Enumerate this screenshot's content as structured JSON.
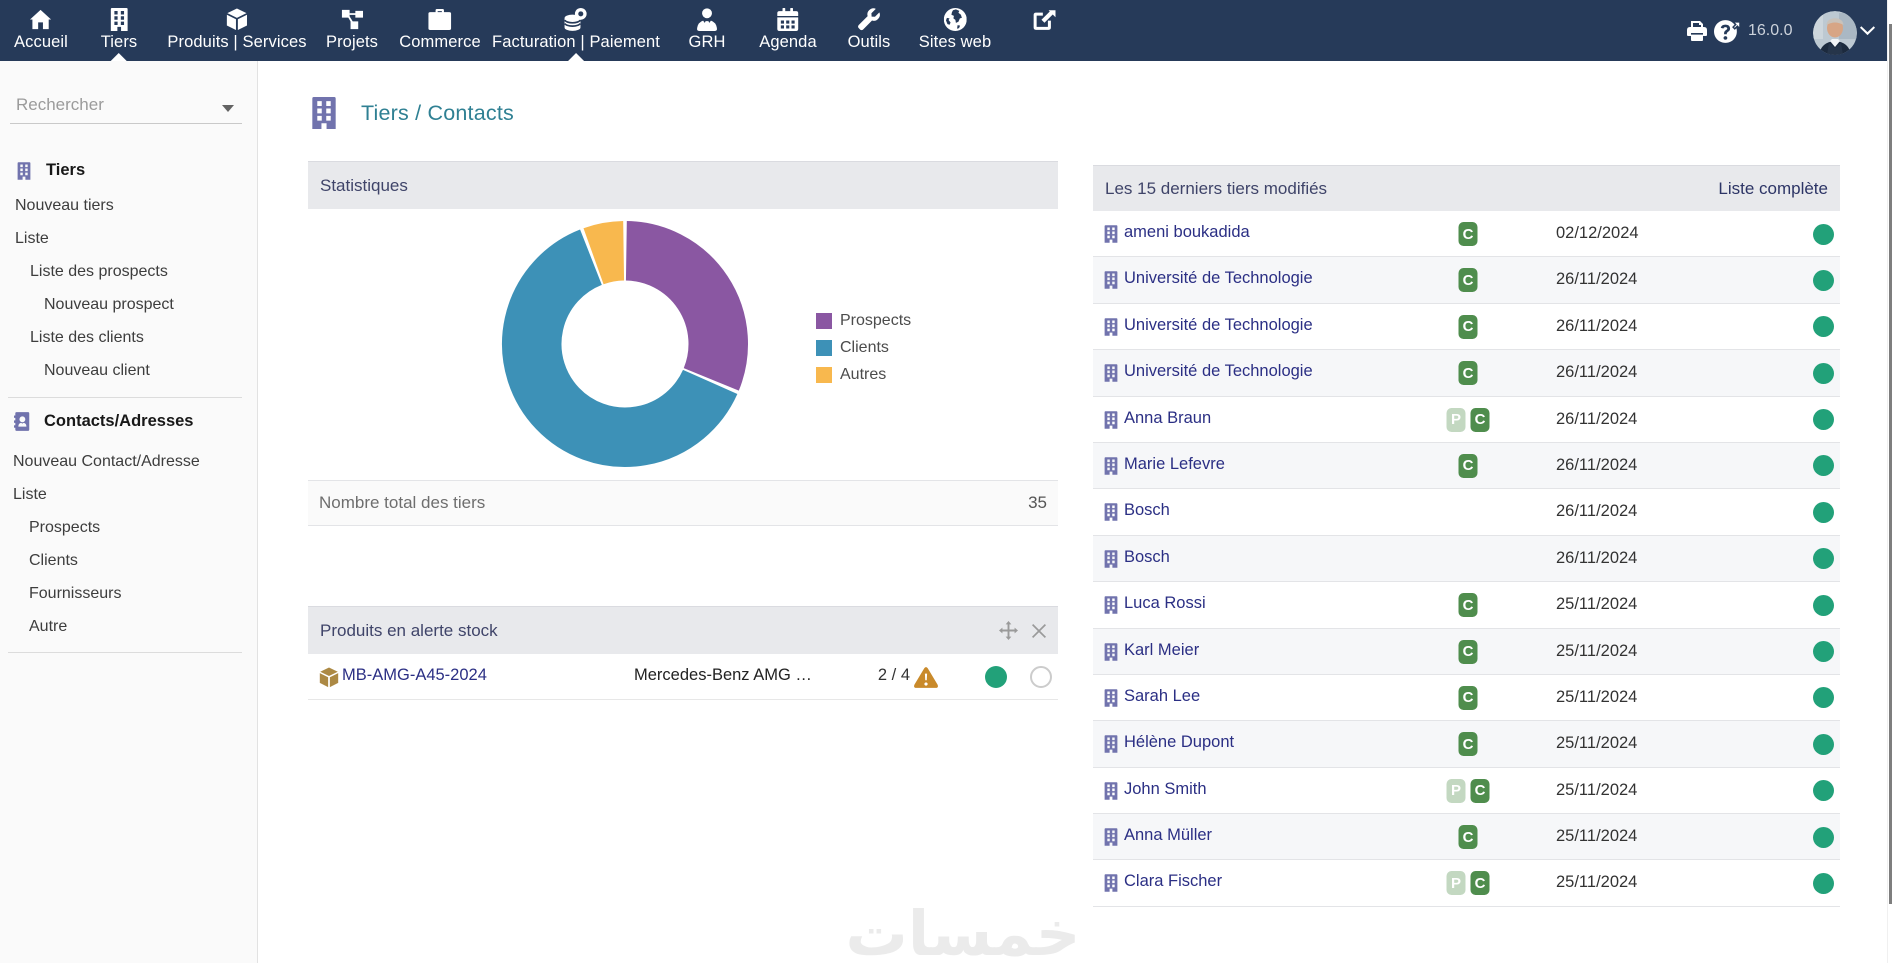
{
  "navbar": {
    "tabs": [
      {
        "label": "Accueil",
        "icon": "home-icon",
        "notch": false
      },
      {
        "label": "Tiers",
        "icon": "building-icon",
        "notch": true
      },
      {
        "label": "Produits | Services",
        "icon": "cube-icon",
        "notch": false
      },
      {
        "label": "Projets",
        "icon": "project-diagram-icon",
        "notch": false
      },
      {
        "label": "Commerce",
        "icon": "briefcase-icon",
        "notch": false
      },
      {
        "label": "Facturation | Paiement",
        "icon": "coins-icon",
        "notch": true
      },
      {
        "label": "GRH",
        "icon": "user-tie-icon",
        "notch": false
      },
      {
        "label": "Agenda",
        "icon": "calendar-icon",
        "notch": false
      },
      {
        "label": "Outils",
        "icon": "wrench-icon",
        "notch": false
      },
      {
        "label": "Sites web",
        "icon": "globe-icon",
        "notch": false
      },
      {
        "label": "",
        "icon": "external-link-icon",
        "notch": false
      }
    ],
    "version": "16.0.0"
  },
  "sidebar": {
    "search_placeholder": "Rechercher",
    "sections": [
      {
        "title": "Tiers",
        "icon": "building-icon",
        "items": [
          {
            "label": "Nouveau tiers",
            "indent": 0
          },
          {
            "label": "Liste",
            "indent": 0
          },
          {
            "label": "Liste des prospects",
            "indent": 1
          },
          {
            "label": "Nouveau prospect",
            "indent": 2
          },
          {
            "label": "Liste des clients",
            "indent": 1
          },
          {
            "label": "Nouveau client",
            "indent": 2
          }
        ]
      },
      {
        "title": "Contacts/Adresses",
        "icon": "address-book-icon",
        "items": [
          {
            "label": "Nouveau Contact/Adresse",
            "indent": 0
          },
          {
            "label": "Liste",
            "indent": 0
          },
          {
            "label": "Prospects",
            "indent": 1
          },
          {
            "label": "Clients",
            "indent": 1
          },
          {
            "label": "Fournisseurs",
            "indent": 1
          },
          {
            "label": "Autre",
            "indent": 1
          }
        ]
      }
    ]
  },
  "breadcrumb": {
    "title": "Tiers / Contacts"
  },
  "stats_box": {
    "title": "Statistiques",
    "total_label": "Nombre total des tiers",
    "total_value": "35"
  },
  "chart_data": {
    "type": "pie",
    "subtype": "donut",
    "title": "Statistiques",
    "labels": [
      "Prospects",
      "Clients",
      "Autres"
    ],
    "values": [
      11,
      22,
      2
    ],
    "total": 35,
    "colors": [
      "#8a57a2",
      "#3d91b7",
      "#f8b84e"
    ],
    "legend_position": "right"
  },
  "products_box": {
    "title": "Produits en alerte stock",
    "rows": [
      {
        "ref": "MB-AMG-A45-2024",
        "label": "Mercedes-Benz AMG …",
        "stock": "2 / 4"
      }
    ]
  },
  "recent_box": {
    "title": "Les 15 derniers tiers modifiés",
    "link": "Liste complète",
    "rows": [
      {
        "name": "ameni boukadida",
        "badges": [
          "C"
        ],
        "date": "02/12/2024"
      },
      {
        "name": "Université de Technologie",
        "badges": [
          "C"
        ],
        "date": "26/11/2024"
      },
      {
        "name": "Université de Technologie",
        "badges": [
          "C"
        ],
        "date": "26/11/2024"
      },
      {
        "name": "Université de Technologie",
        "badges": [
          "C"
        ],
        "date": "26/11/2024"
      },
      {
        "name": "Anna Braun",
        "badges": [
          "P",
          "C"
        ],
        "date": "26/11/2024"
      },
      {
        "name": "Marie Lefevre",
        "badges": [
          "C"
        ],
        "date": "26/11/2024"
      },
      {
        "name": "Bosch",
        "badges": [],
        "date": "26/11/2024"
      },
      {
        "name": "Bosch",
        "badges": [],
        "date": "26/11/2024"
      },
      {
        "name": "Luca Rossi",
        "badges": [
          "C"
        ],
        "date": "25/11/2024"
      },
      {
        "name": "Karl Meier",
        "badges": [
          "C"
        ],
        "date": "25/11/2024"
      },
      {
        "name": "Sarah Lee",
        "badges": [
          "C"
        ],
        "date": "25/11/2024"
      },
      {
        "name": "Hélène Dupont",
        "badges": [
          "C"
        ],
        "date": "25/11/2024"
      },
      {
        "name": "John Smith",
        "badges": [
          "P",
          "C"
        ],
        "date": "25/11/2024"
      },
      {
        "name": "Anna Müller",
        "badges": [
          "C"
        ],
        "date": "25/11/2024"
      },
      {
        "name": "Clara Fischer",
        "badges": [
          "P",
          "C"
        ],
        "date": "25/11/2024"
      }
    ]
  },
  "watermark": "خمسات"
}
